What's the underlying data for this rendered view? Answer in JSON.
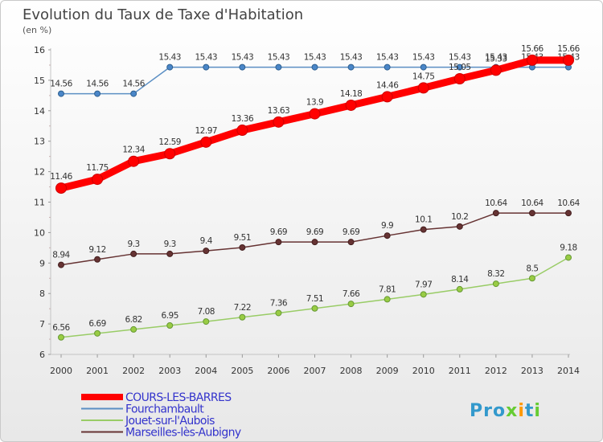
{
  "chart_data": {
    "type": "line",
    "title": "Evolution du Taux de Taxe d'Habitation",
    "unit_label": "(en %)",
    "x": [
      2000,
      2001,
      2002,
      2003,
      2004,
      2005,
      2006,
      2007,
      2008,
      2009,
      2010,
      2011,
      2012,
      2013,
      2014
    ],
    "ylim": [
      6,
      16
    ],
    "yticks": [
      6,
      7,
      8,
      9,
      10,
      11,
      12,
      13,
      14,
      15,
      16
    ],
    "grid": false,
    "legend_position": "bottom-left",
    "series": [
      {
        "name": "COURS-LES-BARRES",
        "color": "#ff0000",
        "values": [
          11.46,
          11.75,
          12.34,
          12.59,
          12.97,
          13.36,
          13.63,
          13.9,
          14.18,
          14.46,
          14.75,
          15.05,
          15.33,
          15.66,
          15.66
        ]
      },
      {
        "name": "Fourchambault",
        "color": "#6699cc",
        "values": [
          14.56,
          14.56,
          14.56,
          15.43,
          15.43,
          15.43,
          15.43,
          15.43,
          15.43,
          15.43,
          15.43,
          15.43,
          15.43,
          15.43,
          15.43
        ]
      },
      {
        "name": "Jouet-sur-l'Aubois",
        "color": "#99cc66",
        "values": [
          6.56,
          6.69,
          6.82,
          6.95,
          7.08,
          7.22,
          7.36,
          7.51,
          7.66,
          7.81,
          7.97,
          8.14,
          8.32,
          8.5,
          9.18
        ]
      },
      {
        "name": "Marseilles-lès-Aubigny",
        "color": "#663333",
        "values": [
          8.94,
          9.12,
          9.3,
          9.3,
          9.4,
          9.51,
          9.69,
          9.69,
          9.69,
          9.9,
          10.1,
          10.2,
          10.64,
          10.64,
          10.64
        ]
      }
    ]
  },
  "legend": {
    "text_color": "#3333cc",
    "items": [
      "COURS-LES-BARRES",
      "Fourchambault",
      "Jouet-sur-l'Aubois",
      "Marseilles-lès-Aubigny"
    ]
  },
  "brand": {
    "logo_text": "Proxiti",
    "logo_colors": [
      "#3399cc",
      "#66cc33",
      "#ff9900"
    ]
  }
}
